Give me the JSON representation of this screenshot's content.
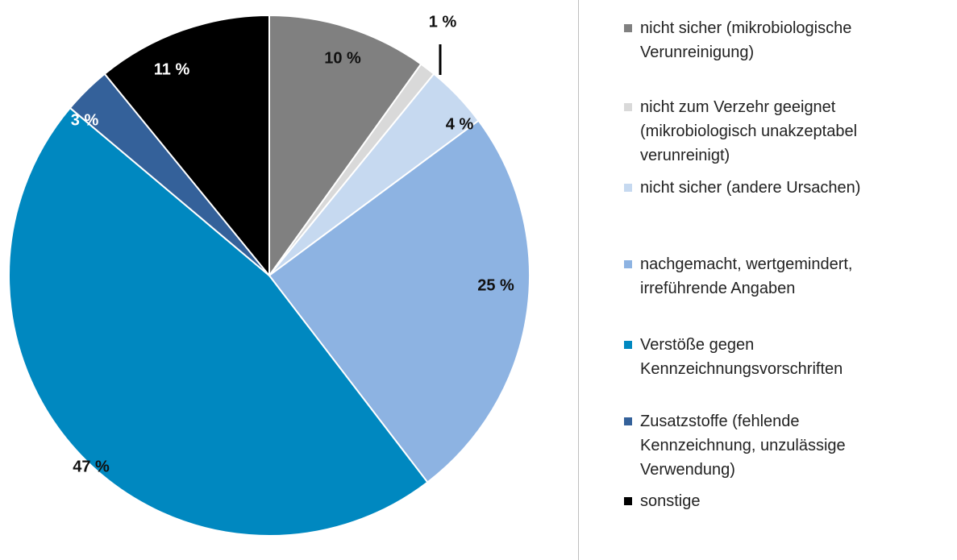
{
  "chart_data": {
    "type": "pie",
    "categories": [
      "nicht sicher (mikrobiologische Verunreinigung)",
      "nicht zum Verzehr geeignet (mikrobiologisch unakzeptabel verunreinigt)",
      "nicht sicher (andere Ursachen)",
      "nachgemacht, wertgemindert, irreführende Angaben",
      "Verstöße gegen Kennzeichnungsvorschriften",
      "Zusatzstoffe (fehlende Kennzeichnung, unzulässige Verwendung)",
      "sonstige"
    ],
    "values": [
      10,
      1,
      4,
      25,
      47,
      3,
      11
    ],
    "value_labels": [
      "10 %",
      "1 %",
      "4 %",
      "25 %",
      "47 %",
      "3 %",
      "11 %"
    ],
    "colors": [
      "#808080",
      "#d9d9d9",
      "#c6d9f0",
      "#8db3e2",
      "#0088c0",
      "#34619a",
      "#000000"
    ],
    "legend": "right"
  }
}
